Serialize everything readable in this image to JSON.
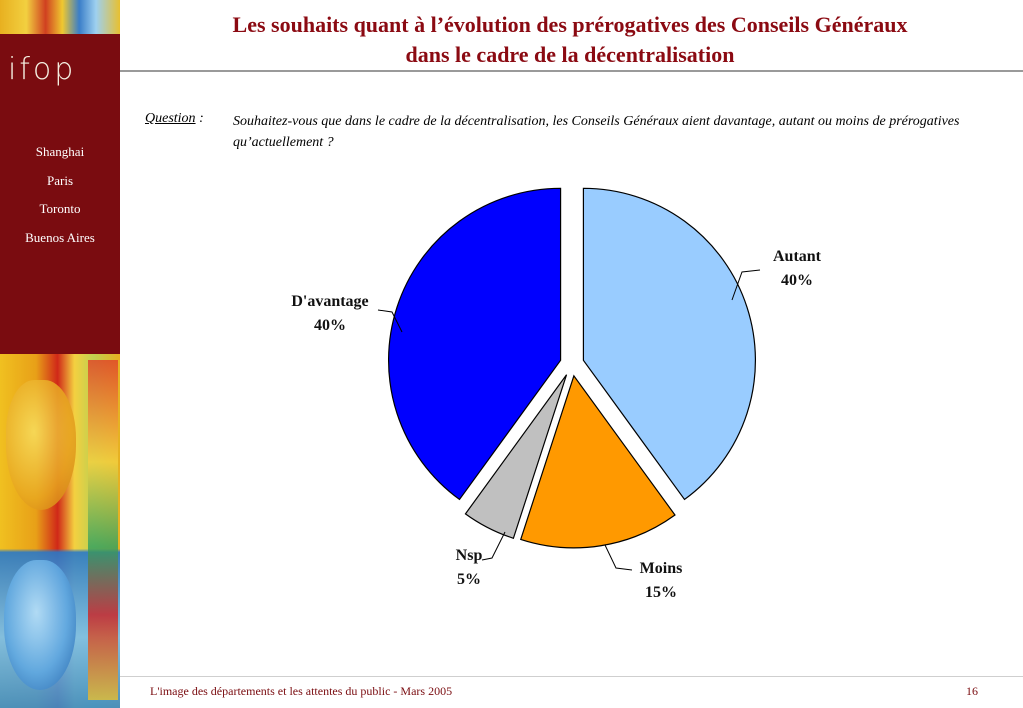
{
  "sidebar": {
    "logo": "ifop",
    "cities": [
      "Shanghai",
      "Paris",
      "Toronto",
      "Buenos Aires"
    ]
  },
  "header": {
    "title_line1": "Les souhaits quant à l’évolution des prérogatives des Conseils Généraux",
    "title_line2": "dans le cadre de la décentralisation"
  },
  "question": {
    "label": "Question",
    "separator": " :",
    "text": "Souhaitez-vous que dans le cadre de la décentralisation, les Conseils Généraux aient davantage, autant ou moins de prérogatives qu’actuellement ?"
  },
  "chart_data": {
    "type": "pie",
    "title": "",
    "slices": [
      {
        "label": "Autant",
        "value": 40,
        "display": "40%",
        "color": "#99ccff"
      },
      {
        "label": "Moins",
        "value": 15,
        "display": "15%",
        "color": "#ff9900"
      },
      {
        "label": "Nsp",
        "value": 5,
        "display": "5%",
        "color": "#c0c0c0"
      },
      {
        "label": "D'avantage",
        "value": 40,
        "display": "40%",
        "color": "#0000ff"
      }
    ],
    "exploded": true,
    "legend": "none"
  },
  "footer": {
    "text": "L'image des départements et les attentes du public - Mars 2005",
    "page": "16"
  }
}
